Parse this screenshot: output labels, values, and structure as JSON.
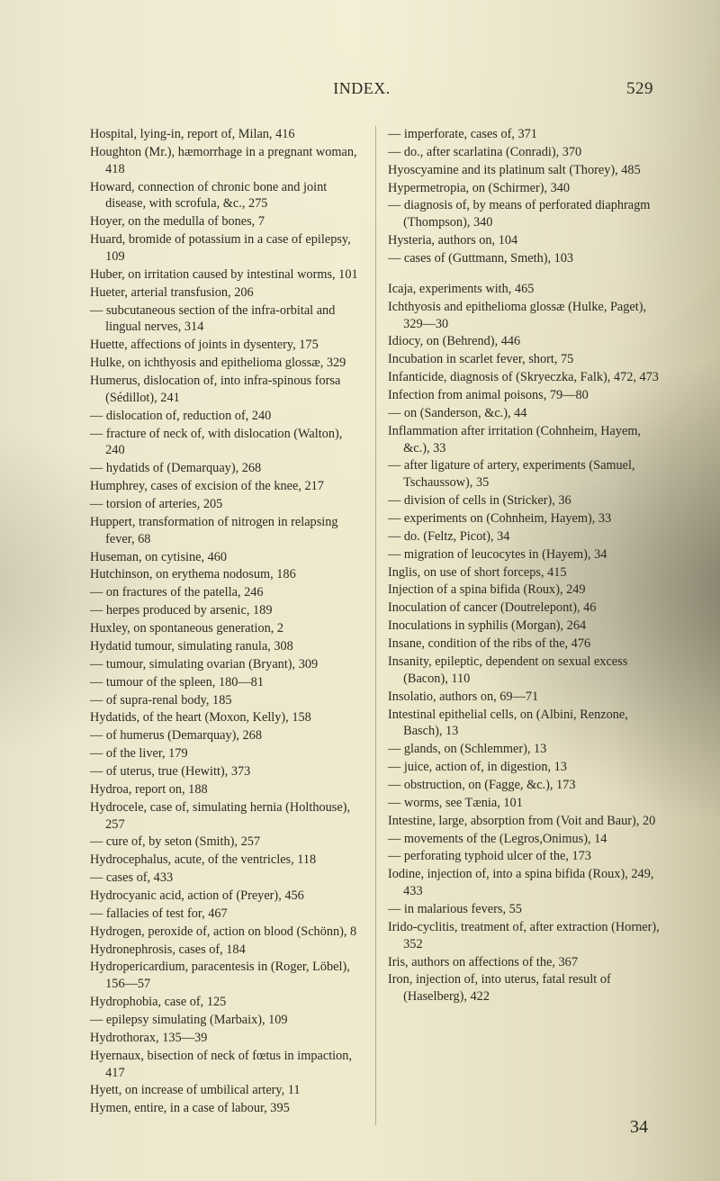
{
  "header": {
    "title": "INDEX.",
    "pagenum": "529"
  },
  "footer": {
    "sig": "34"
  },
  "col1": [
    "Hospital, lying-in, report of, Milan, 416",
    "Houghton (Mr.), hæmorrhage in a pregnant woman, 418",
    "Howard, connection of chronic bone and joint disease, with scrofula, &c., 275",
    "Hoyer, on the medulla of bones, 7",
    "Huard, bromide of potassium in a case of epilepsy, 109",
    "Huber, on irritation caused by intestinal worms, 101",
    "Hueter, arterial transfusion, 206",
    "— subcutaneous section of the infra-orbital and lingual nerves, 314",
    "Huette, affections of joints in dysentery, 175",
    "Hulke, on ichthyosis and epithelioma glossæ, 329",
    "Humerus, dislocation of, into infra-spinous forsa (Sédillot), 241",
    "— dislocation of, reduction of, 240",
    "— fracture of neck of, with dislocation (Walton), 240",
    "— hydatids of (Demarquay), 268",
    "Humphrey, cases of excision of the knee, 217",
    "— torsion of arteries, 205",
    "Huppert, transformation of nitrogen in relapsing fever, 68",
    "Huseman, on cytisine, 460",
    "Hutchinson, on erythema nodosum, 186",
    "— on fractures of the patella, 246",
    "— herpes produced by arsenic, 189",
    "Huxley, on spontaneous generation, 2",
    "Hydatid tumour, simulating ranula, 308",
    "— tumour, simulating ovarian (Bryant), 309",
    "— tumour of the spleen, 180—81",
    "— of supra-renal body, 185",
    "Hydatids, of the heart (Moxon, Kelly), 158",
    "— of humerus (Demarquay), 268",
    "— of the liver, 179",
    "— of uterus, true (Hewitt), 373",
    "Hydroa, report on, 188",
    "Hydrocele, case of, simulating hernia (Holthouse), 257",
    "— cure of, by seton (Smith), 257",
    "Hydrocephalus, acute, of the ventricles, 118",
    "— cases of, 433",
    "Hydrocyanic acid, action of (Preyer), 456",
    "— fallacies of test for, 467",
    "Hydrogen, peroxide of, action on blood (Schönn), 8",
    "Hydronephrosis, cases of, 184",
    "Hydropericardium, paracentesis in (Roger, Löbel), 156—57",
    "Hydrophobia, case of, 125",
    "— epilepsy simulating (Marbaix), 109"
  ],
  "col2": [
    "Hydrothorax, 135—39",
    "Hyernaux, bisection of neck of fœtus in impaction, 417",
    "Hyett, on increase of umbilical artery, 11",
    "Hymen, entire, in a case of labour, 395",
    "— imperforate, cases of, 371",
    "— do., after scarlatina (Conradi), 370",
    "Hyoscyamine and its platinum salt (Thorey), 485",
    "Hypermetropia, on (Schirmer), 340",
    "— diagnosis of, by means of perforated diaphragm (Thompson), 340",
    "Hysteria, authors on, 104",
    "— cases of (Guttmann, Smeth), 103",
    "__SPACER__",
    "Icaja, experiments with, 465",
    "Ichthyosis and epithelioma glossæ (Hulke, Paget), 329—30",
    "Idiocy, on (Behrend), 446",
    "Incubation in scarlet fever, short, 75",
    "Infanticide, diagnosis of (Skryeczka, Falk), 472, 473",
    "Infection from animal poisons, 79—80",
    "— on (Sanderson, &c.), 44",
    "Inflammation after irritation (Cohnheim, Hayem, &c.), 33",
    "— after ligature of artery, experiments (Samuel, Tschaussow), 35",
    "— division of cells in (Stricker), 36",
    "— experiments on (Cohnheim, Hayem), 33",
    "— do. (Feltz, Picot), 34",
    "— migration of leucocytes in (Hayem), 34",
    "Inglis, on use of short forceps, 415",
    "Injection of a spina bifida (Roux), 249",
    "Inoculation of cancer (Doutrelepont), 46",
    "Inoculations in syphilis (Morgan), 264",
    "Insane, condition of the ribs of the, 476",
    "Insanity, epileptic, dependent on sexual excess (Bacon), 110",
    "Insolatio, authors on, 69—71",
    "Intestinal epithelial cells, on (Albini, Renzone, Basch), 13",
    "— glands, on (Schlemmer), 13",
    "— juice, action of, in digestion, 13",
    "— obstruction, on (Fagge, &c.), 173",
    "— worms, see Tænia, 101",
    "Intestine, large, absorption from (Voit and Baur), 20",
    "— movements of the (Legros,Onimus), 14",
    "— perforating typhoid ulcer of the, 173",
    "Iodine, injection of, into a spina bifida (Roux), 249, 433",
    "— in malarious fevers, 55",
    "Irido-cyclitis, treatment of, after extraction (Horner), 352",
    "Iris, authors on affections of the, 367",
    "Iron, injection of, into uterus, fatal result of (Haselberg), 422"
  ]
}
